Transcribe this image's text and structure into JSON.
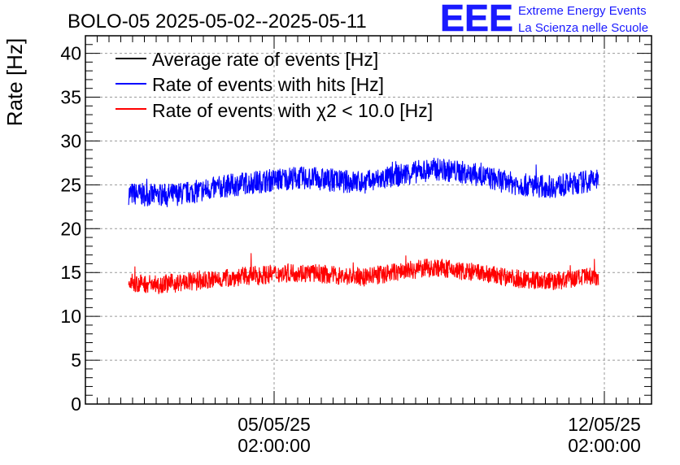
{
  "header": {
    "title": "BOLO-05 2025-05-02--2025-05-11",
    "logo_text": "EEE",
    "logo_line1": "Extreme Energy Events",
    "logo_line2": "La Scienza nelle Scuole",
    "logo_color": "#1a1aff"
  },
  "chart_data": {
    "type": "line",
    "title": "BOLO-05 2025-05-02--2025-05-11",
    "ylabel": "Rate [Hz]",
    "xlabel": "",
    "ylim": [
      0,
      42
    ],
    "yticks": [
      0,
      5,
      10,
      15,
      20,
      25,
      30,
      35,
      40
    ],
    "xlim": [
      "2025-05-01 02:00:00",
      "2025-05-13 02:00:00"
    ],
    "xticks": [
      {
        "x": "2025-05-05 02:00:00",
        "label1": "05/05/25",
        "label2": "02:00:00"
      },
      {
        "x": "2025-05-12 02:00:00",
        "label1": "12/05/25",
        "label2": "02:00:00"
      }
    ],
    "grid": true,
    "legend_position": "top-left",
    "series": [
      {
        "name": "Average rate of events [Hz]",
        "color": "#000000",
        "x": [],
        "y": []
      },
      {
        "name": "Rate of events with hits [Hz]",
        "color": "#0000ff",
        "x": [
          "2025-05-02 00:00",
          "2025-05-02 12:00",
          "2025-05-03 00:00",
          "2025-05-03 12:00",
          "2025-05-04 00:00",
          "2025-05-04 12:00",
          "2025-05-05 00:00",
          "2025-05-05 12:00",
          "2025-05-06 00:00",
          "2025-05-06 12:00",
          "2025-05-07 00:00",
          "2025-05-07 12:00",
          "2025-05-08 00:00",
          "2025-05-08 12:00",
          "2025-05-09 00:00",
          "2025-05-09 12:00",
          "2025-05-10 00:00",
          "2025-05-10 12:00",
          "2025-05-11 00:00",
          "2025-05-11 12:00",
          "2025-05-11 23:00"
        ],
        "y": [
          24.0,
          23.8,
          23.9,
          24.3,
          24.8,
          25.2,
          25.5,
          25.8,
          25.7,
          25.4,
          25.3,
          25.8,
          26.4,
          26.8,
          26.5,
          26.0,
          25.3,
          24.9,
          24.8,
          25.2,
          25.6
        ]
      },
      {
        "name": "Rate of events with χ2 < 10.0 [Hz]",
        "color": "#ff0000",
        "x": [
          "2025-05-02 00:00",
          "2025-05-02 12:00",
          "2025-05-03 00:00",
          "2025-05-03 12:00",
          "2025-05-04 00:00",
          "2025-05-04 12:00",
          "2025-05-05 00:00",
          "2025-05-05 12:00",
          "2025-05-06 00:00",
          "2025-05-06 12:00",
          "2025-05-07 00:00",
          "2025-05-07 12:00",
          "2025-05-08 00:00",
          "2025-05-08 12:00",
          "2025-05-09 00:00",
          "2025-05-09 12:00",
          "2025-05-10 00:00",
          "2025-05-10 12:00",
          "2025-05-11 00:00",
          "2025-05-11 12:00",
          "2025-05-11 23:00"
        ],
        "y": [
          13.8,
          13.7,
          13.8,
          14.0,
          14.3,
          14.6,
          14.8,
          15.0,
          14.9,
          14.6,
          14.5,
          14.9,
          15.3,
          15.6,
          15.2,
          14.9,
          14.4,
          14.2,
          14.0,
          14.3,
          14.6
        ]
      }
    ]
  }
}
